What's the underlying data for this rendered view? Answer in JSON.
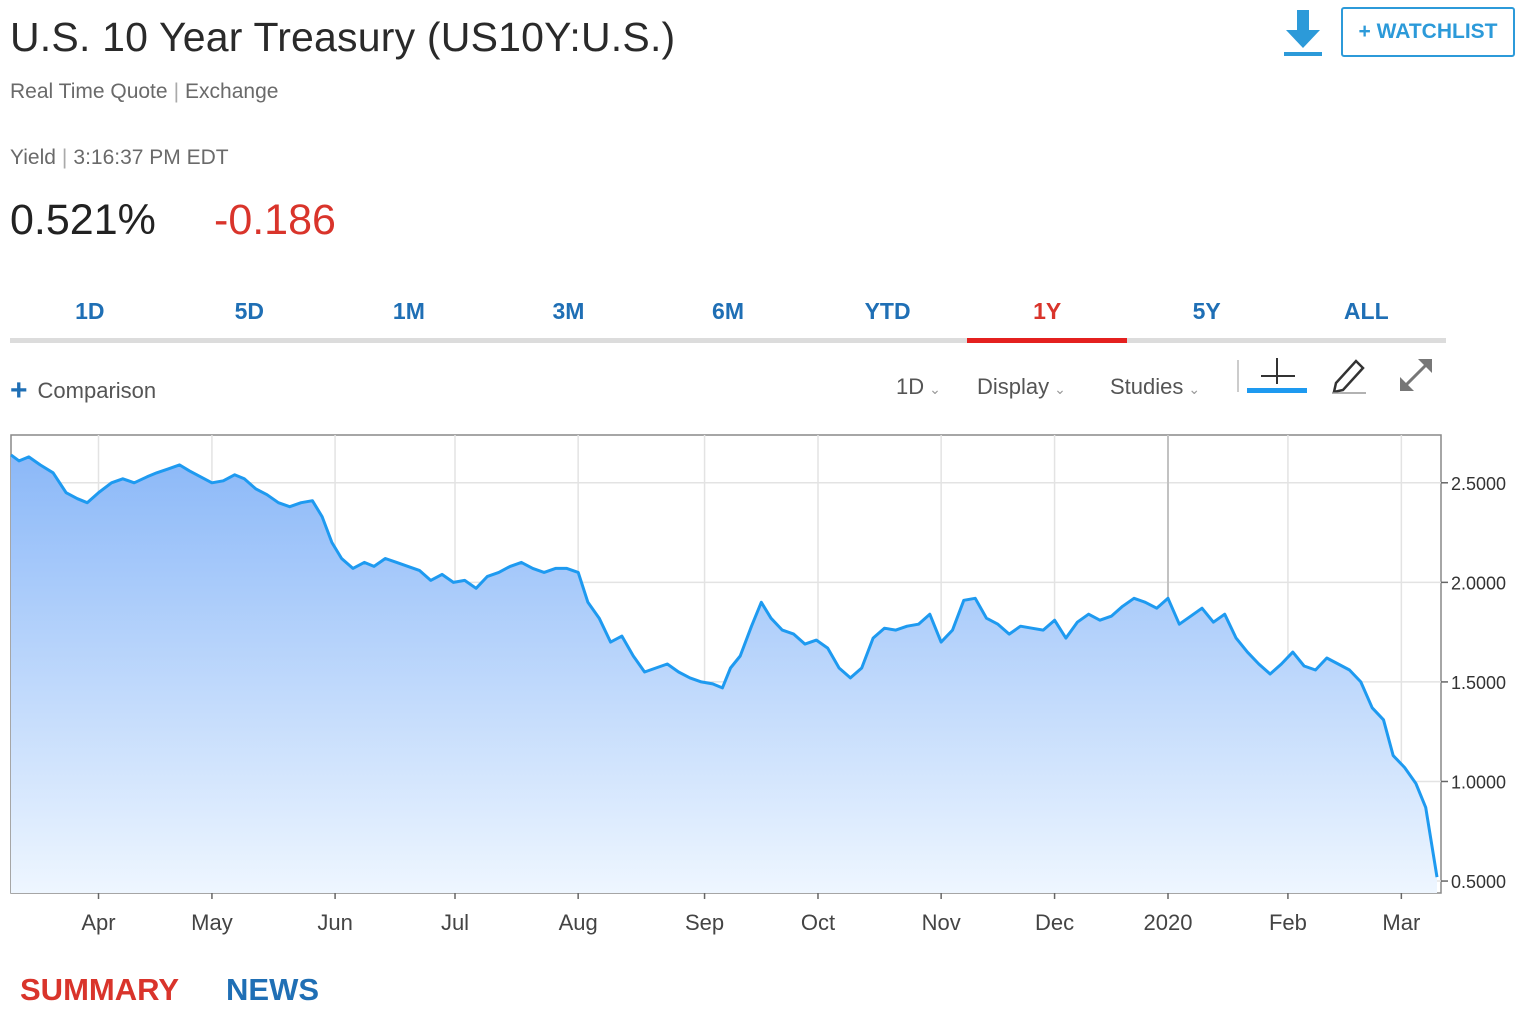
{
  "header": {
    "title": "U.S. 10 Year Treasury (US10Y:U.S.)",
    "quote_type": "Real Time Quote",
    "exchange": "Exchange",
    "yield_label": "Yield",
    "time": "3:16:37 PM EDT",
    "price": "0.521%",
    "change": "-0.186",
    "watchlist_label": "+ WATCHLIST"
  },
  "tabs": [
    {
      "label": "1D",
      "active": false
    },
    {
      "label": "5D",
      "active": false
    },
    {
      "label": "1M",
      "active": false
    },
    {
      "label": "3M",
      "active": false
    },
    {
      "label": "6M",
      "active": false
    },
    {
      "label": "YTD",
      "active": false
    },
    {
      "label": "1Y",
      "active": true
    },
    {
      "label": "5Y",
      "active": false
    },
    {
      "label": "ALL",
      "active": false
    }
  ],
  "toolbar": {
    "comparison": "Comparison",
    "interval": "1D",
    "display": "Display",
    "studies": "Studies"
  },
  "bottom_tabs": {
    "summary": "SUMMARY",
    "news": "NEWS"
  },
  "colors": {
    "line": "#1e9af0",
    "down": "#d9342b",
    "link": "#1f6fb5",
    "active_tab": "#e4201f"
  },
  "chart_data": {
    "type": "area",
    "series": [
      {
        "name": "US10Y",
        "points": [
          [
            0.0,
            2.64
          ],
          [
            2.5,
            2.61
          ],
          [
            5.5,
            2.63
          ],
          [
            9.0,
            2.59
          ],
          [
            13.0,
            2.55
          ],
          [
            17.0,
            2.45
          ],
          [
            20.5,
            2.42
          ],
          [
            23.5,
            2.4
          ],
          [
            27.0,
            2.45
          ],
          [
            31.0,
            2.5
          ],
          [
            34.5,
            2.52
          ],
          [
            38.0,
            2.5
          ],
          [
            42.0,
            2.53
          ],
          [
            45.0,
            2.55
          ],
          [
            48.5,
            2.57
          ],
          [
            52.0,
            2.59
          ],
          [
            55.0,
            2.56
          ],
          [
            58.5,
            2.53
          ],
          [
            62.0,
            2.5
          ],
          [
            65.5,
            2.51
          ],
          [
            69.0,
            2.54
          ],
          [
            72.0,
            2.52
          ],
          [
            75.5,
            2.47
          ],
          [
            79.0,
            2.44
          ],
          [
            82.5,
            2.4
          ],
          [
            86.0,
            2.38
          ],
          [
            89.5,
            2.4
          ],
          [
            93.0,
            2.41
          ],
          [
            96.0,
            2.33
          ],
          [
            99.0,
            2.2
          ],
          [
            102.0,
            2.12
          ],
          [
            105.5,
            2.07
          ],
          [
            109.0,
            2.1
          ],
          [
            112.0,
            2.08
          ],
          [
            115.5,
            2.12
          ],
          [
            119.0,
            2.1
          ],
          [
            122.5,
            2.08
          ],
          [
            126.0,
            2.06
          ],
          [
            129.5,
            2.01
          ],
          [
            133.0,
            2.04
          ],
          [
            136.5,
            2.0
          ],
          [
            140.0,
            2.01
          ],
          [
            143.5,
            1.97
          ],
          [
            147.0,
            2.03
          ],
          [
            150.5,
            2.05
          ],
          [
            154.0,
            2.08
          ],
          [
            157.5,
            2.1
          ],
          [
            161.0,
            2.07
          ],
          [
            164.5,
            2.05
          ],
          [
            168.0,
            2.07
          ],
          [
            171.5,
            2.07
          ],
          [
            175.0,
            2.05
          ],
          [
            178.0,
            1.9
          ],
          [
            181.5,
            1.82
          ],
          [
            185.0,
            1.7
          ],
          [
            188.5,
            1.73
          ],
          [
            192.0,
            1.63
          ],
          [
            195.5,
            1.55
          ],
          [
            199.0,
            1.57
          ],
          [
            202.5,
            1.59
          ],
          [
            206.0,
            1.55
          ],
          [
            209.5,
            1.52
          ],
          [
            213.0,
            1.5
          ],
          [
            216.5,
            1.49
          ],
          [
            219.5,
            1.47
          ],
          [
            222.0,
            1.57
          ],
          [
            225.0,
            1.63
          ],
          [
            228.5,
            1.78
          ],
          [
            231.5,
            1.9
          ],
          [
            234.5,
            1.82
          ],
          [
            238.0,
            1.76
          ],
          [
            241.5,
            1.74
          ],
          [
            245.0,
            1.69
          ],
          [
            248.5,
            1.71
          ],
          [
            252.0,
            1.67
          ],
          [
            255.5,
            1.57
          ],
          [
            259.0,
            1.52
          ],
          [
            262.5,
            1.57
          ],
          [
            266.0,
            1.72
          ],
          [
            269.5,
            1.77
          ],
          [
            273.0,
            1.76
          ],
          [
            276.5,
            1.78
          ],
          [
            280.0,
            1.79
          ],
          [
            283.5,
            1.84
          ],
          [
            287.0,
            1.7
          ],
          [
            290.5,
            1.76
          ],
          [
            294.0,
            1.91
          ],
          [
            297.5,
            1.92
          ],
          [
            301.0,
            1.82
          ],
          [
            304.5,
            1.79
          ],
          [
            308.0,
            1.74
          ],
          [
            311.5,
            1.78
          ],
          [
            315.0,
            1.77
          ],
          [
            318.5,
            1.76
          ],
          [
            322.0,
            1.81
          ],
          [
            325.5,
            1.72
          ],
          [
            329.0,
            1.8
          ],
          [
            332.5,
            1.84
          ],
          [
            336.0,
            1.81
          ],
          [
            339.5,
            1.83
          ],
          [
            343.0,
            1.88
          ],
          [
            346.5,
            1.92
          ],
          [
            350.0,
            1.9
          ],
          [
            353.5,
            1.87
          ],
          [
            357.0,
            1.92
          ],
          [
            360.5,
            1.79
          ],
          [
            364.0,
            1.83
          ],
          [
            367.5,
            1.87
          ],
          [
            371.0,
            1.8
          ],
          [
            374.5,
            1.84
          ],
          [
            378.0,
            1.72
          ],
          [
            381.5,
            1.65
          ],
          [
            385.0,
            1.59
          ],
          [
            388.5,
            1.54
          ],
          [
            392.0,
            1.59
          ],
          [
            395.5,
            1.65
          ],
          [
            399.0,
            1.58
          ],
          [
            402.5,
            1.56
          ],
          [
            406.0,
            1.62
          ],
          [
            409.5,
            1.59
          ],
          [
            413.0,
            1.56
          ],
          [
            416.5,
            1.5
          ],
          [
            420.0,
            1.37
          ],
          [
            423.5,
            1.31
          ],
          [
            426.5,
            1.13
          ],
          [
            430.0,
            1.07
          ],
          [
            433.5,
            0.99
          ],
          [
            436.5,
            0.87
          ],
          [
            440.0,
            0.52
          ]
        ]
      }
    ],
    "x_tick_labels": [
      "Apr",
      "May",
      "Jun",
      "Jul",
      "Aug",
      "Sep",
      "Oct",
      "Nov",
      "Dec",
      "2020",
      "Feb",
      "Mar"
    ],
    "x_tick_days": [
      27,
      62,
      100,
      137,
      175,
      214,
      249,
      287,
      322,
      357,
      394,
      429
    ],
    "y_ticks": [
      2.5,
      2.0,
      1.5,
      1.0,
      0.5
    ],
    "y_tick_labels": [
      "2.5000",
      "2.0000",
      "1.5000",
      "1.0000",
      "0.5000"
    ],
    "ylim": [
      0.44,
      2.74
    ],
    "grid": true,
    "title": "",
    "xlabel": "",
    "ylabel": ""
  }
}
